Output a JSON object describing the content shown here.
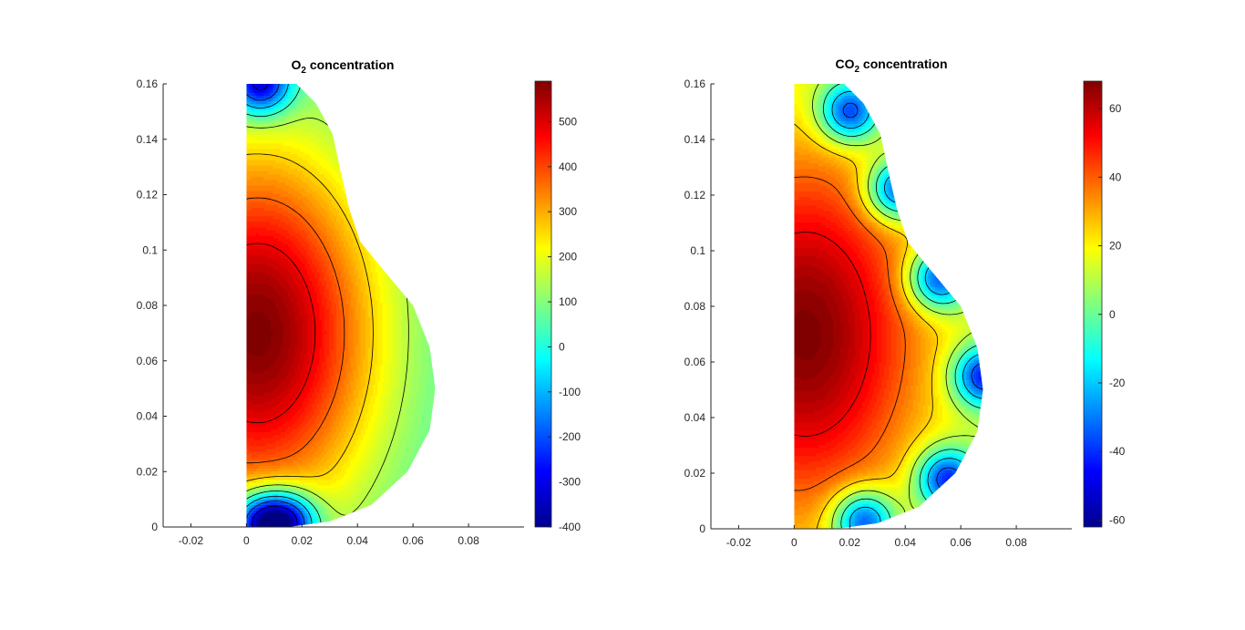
{
  "chart_data": [
    {
      "type": "contour",
      "title": {
        "base": "O",
        "sub": "2",
        "rest": " concentration"
      },
      "x_ticks": [
        "-0.02",
        "0",
        "0.02",
        "0.04",
        "0.06",
        "0.08"
      ],
      "y_ticks": [
        "0",
        "0.02",
        "0.04",
        "0.06",
        "0.08",
        "0.1",
        "0.12",
        "0.14",
        "0.16"
      ],
      "xlim": [
        -0.03,
        0.1
      ],
      "ylim": [
        0,
        0.16
      ],
      "colorbar": {
        "min": -400,
        "max": 590,
        "ticks": [
          "500",
          "400",
          "300",
          "200",
          "100",
          "0",
          "-100",
          "-200",
          "-300",
          "-400"
        ],
        "colormap": "jet"
      },
      "field": {
        "peak": [
          0.004,
          0.07
        ],
        "max": 590,
        "edge_value": 20,
        "low_spots": [
          [
            0.005,
            0.16
          ],
          [
            0.005,
            0.002
          ],
          [
            0.015,
            0.002
          ]
        ]
      }
    },
    {
      "type": "contour",
      "title": {
        "base": "CO",
        "sub": "2",
        "rest": " concentration"
      },
      "x_ticks": [
        "-0.02",
        "0",
        "0.02",
        "0.04",
        "0.06",
        "0.08"
      ],
      "y_ticks": [
        "0",
        "0.02",
        "0.04",
        "0.06",
        "0.08",
        "0.1",
        "0.12",
        "0.14",
        "0.16"
      ],
      "xlim": [
        -0.03,
        0.1
      ],
      "ylim": [
        0,
        0.16
      ],
      "colorbar": {
        "min": -62,
        "max": 68,
        "ticks": [
          "60",
          "40",
          "20",
          "0",
          "-20",
          "-40",
          "-60"
        ],
        "colormap": "jet"
      },
      "field": {
        "peak": [
          0.004,
          0.07
        ],
        "max": 68,
        "edge_value": 8,
        "low_spots": [
          [
            0.02,
            0.15
          ],
          [
            0.037,
            0.122
          ],
          [
            0.052,
            0.09
          ],
          [
            0.068,
            0.055
          ],
          [
            0.055,
            0.018
          ],
          [
            0.025,
            0.003
          ]
        ]
      }
    }
  ]
}
